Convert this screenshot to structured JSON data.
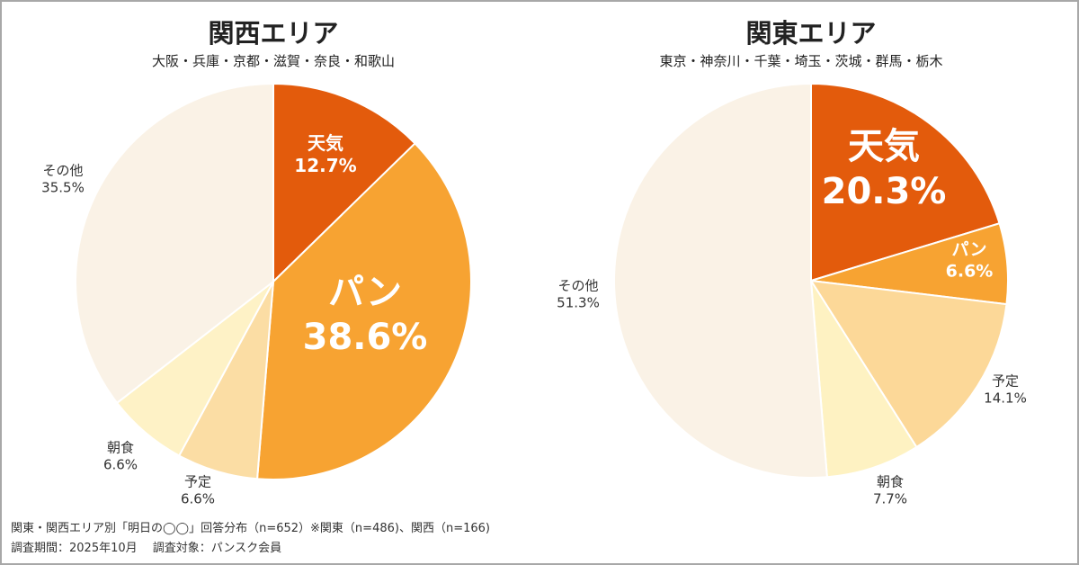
{
  "chart_data": [
    {
      "type": "pie",
      "title": "関西エリア",
      "subtitle": "大阪・兵庫・京都・滋賀・奈良・和歌山",
      "slices": [
        {
          "label": "天気",
          "value": 12.7,
          "display": "12.7%",
          "color": "#E35B0C"
        },
        {
          "label": "パン",
          "value": 38.6,
          "display": "38.6%",
          "color": "#F7A332"
        },
        {
          "label": "予定",
          "value": 6.6,
          "display": "6.6%",
          "color": "#FBDDA4"
        },
        {
          "label": "朝食",
          "value": 6.6,
          "display": "6.6%",
          "color": "#FEF2C6"
        },
        {
          "label": "その他",
          "value": 35.5,
          "display": "35.5%",
          "color": "#FAF2E6"
        }
      ]
    },
    {
      "type": "pie",
      "title": "関東エリア",
      "subtitle": "東京・神奈川・千葉・埼玉・茨城・群馬・栃木",
      "slices": [
        {
          "label": "天気",
          "value": 20.3,
          "display": "20.3%",
          "color": "#E35B0C"
        },
        {
          "label": "パン",
          "value": 6.6,
          "display": "6.6%",
          "color": "#F7A332"
        },
        {
          "label": "予定",
          "value": 14.1,
          "display": "14.1%",
          "color": "#FCD898"
        },
        {
          "label": "朝食",
          "value": 7.7,
          "display": "7.7%",
          "color": "#FEF2C2"
        },
        {
          "label": "その他",
          "value": 51.3,
          "display": "51.3%",
          "color": "#FAF2E6"
        }
      ]
    }
  ],
  "footer": {
    "line1": "関東・関西エリア別「明日の◯◯」回答分布（n=652）※関東（n=486)、関西（n=166)",
    "line2": "調査期間：2025年10月　 調査対象：パンスク会員"
  }
}
